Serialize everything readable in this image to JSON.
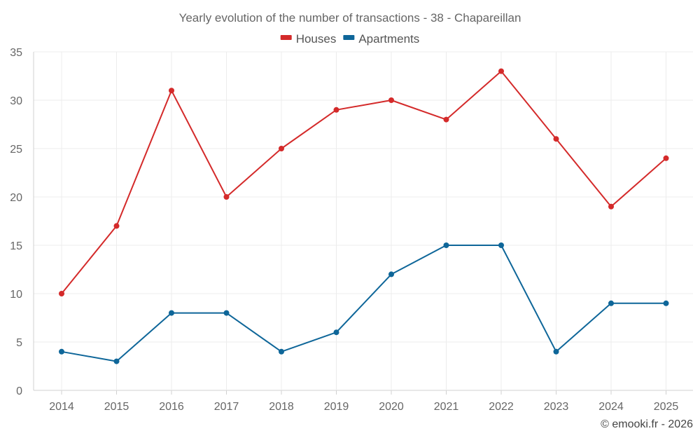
{
  "chart_data": {
    "type": "line",
    "title": "Yearly evolution of the number of transactions - 38 - Chapareillan",
    "categories": [
      "2014",
      "2015",
      "2016",
      "2017",
      "2018",
      "2019",
      "2020",
      "2021",
      "2022",
      "2023",
      "2024",
      "2025"
    ],
    "series": [
      {
        "name": "Houses",
        "color": "#d42a2a",
        "values": [
          10,
          17,
          31,
          20,
          25,
          29,
          30,
          28,
          33,
          26,
          19,
          24
        ]
      },
      {
        "name": "Apartments",
        "color": "#0e6699",
        "values": [
          4,
          3,
          8,
          8,
          4,
          6,
          12,
          15,
          15,
          4,
          9,
          9
        ]
      }
    ],
    "ylim": [
      0,
      35
    ],
    "yticks": [
      0,
      5,
      10,
      15,
      20,
      25,
      30,
      35
    ],
    "xlabel": "",
    "ylabel": "",
    "grid": true,
    "legend": "top-center"
  },
  "credit": "© emooki.fr - 2026"
}
